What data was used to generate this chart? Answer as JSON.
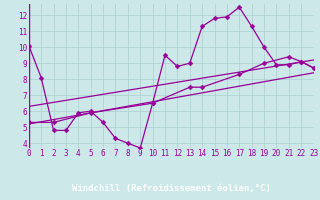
{
  "bg_color": "#cce8e8",
  "plot_bg_color": "#cce8e8",
  "grid_color": "#aacfcf",
  "line_color": "#990099",
  "marker_color": "#990099",
  "axis_bar_color": "#660066",
  "axis_text_color": "#ffffff",
  "x_label": "Windchill (Refroidissement éolien,°C)",
  "y_ticks": [
    4,
    5,
    6,
    7,
    8,
    9,
    10,
    11,
    12
  ],
  "x_ticks": [
    0,
    1,
    2,
    3,
    4,
    5,
    6,
    7,
    8,
    9,
    10,
    11,
    12,
    13,
    14,
    15,
    16,
    17,
    18,
    19,
    20,
    21,
    22,
    23
  ],
  "xlim": [
    0,
    23
  ],
  "ylim": [
    3.7,
    12.7
  ],
  "series1_x": [
    0,
    1,
    2,
    3,
    4,
    5,
    6,
    7,
    8,
    9,
    10,
    11,
    12,
    13,
    14,
    15,
    16,
    17,
    18,
    19,
    20,
    21,
    22,
    23
  ],
  "series1_y": [
    10.1,
    8.1,
    4.8,
    4.8,
    5.9,
    6.0,
    5.3,
    4.3,
    4.0,
    3.7,
    6.5,
    9.5,
    8.8,
    9.0,
    11.3,
    11.8,
    11.9,
    12.5,
    11.3,
    10.0,
    8.9,
    8.9,
    9.1,
    8.7
  ],
  "series2_x": [
    0,
    23
  ],
  "series2_y": [
    5.2,
    8.4
  ],
  "series3_x": [
    0,
    23
  ],
  "series3_y": [
    6.3,
    9.2
  ],
  "series4_x": [
    0,
    2,
    5,
    10,
    13,
    14,
    17,
    19,
    21,
    22,
    23
  ],
  "series4_y": [
    5.3,
    5.3,
    5.9,
    6.5,
    7.5,
    7.5,
    8.3,
    9.0,
    9.4,
    9.1,
    8.7
  ],
  "tick_fontsize": 5.5,
  "xlabel_fontsize": 6.5,
  "lw": 0.9,
  "ms": 2.5
}
